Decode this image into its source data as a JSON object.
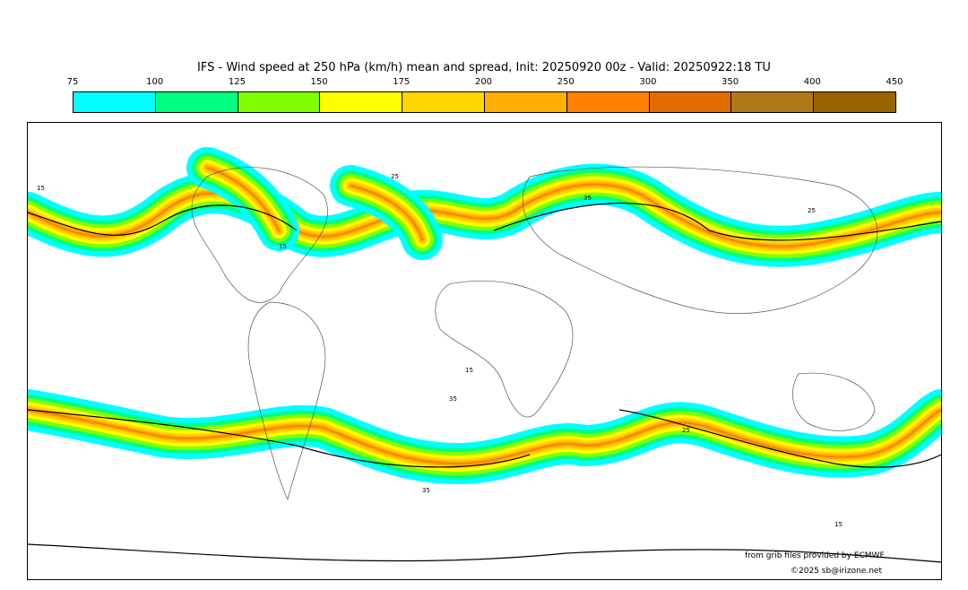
{
  "title": "IFS - Wind speed at 250 hPa (km/h) mean and spread, Init: 20250920 00z - Valid: 20250922:18 TU",
  "colorbar": {
    "ticks": [
      "75",
      "100",
      "125",
      "150",
      "175",
      "200",
      "250",
      "300",
      "350",
      "400",
      "450"
    ],
    "colors": [
      "#00ffff",
      "#00ff80",
      "#80ff00",
      "#ffff00",
      "#ffd700",
      "#ffaf00",
      "#ff8000",
      "#e06c00",
      "#b07818",
      "#9a6400"
    ]
  },
  "map": {
    "contour_labels": [
      "15",
      "25",
      "35",
      "15",
      "25",
      "35",
      "15",
      "25",
      "15",
      "35"
    ]
  },
  "credits": {
    "source": "from grib files provided by ECMWF",
    "copyright": "©2025 sb@irizone.net"
  }
}
